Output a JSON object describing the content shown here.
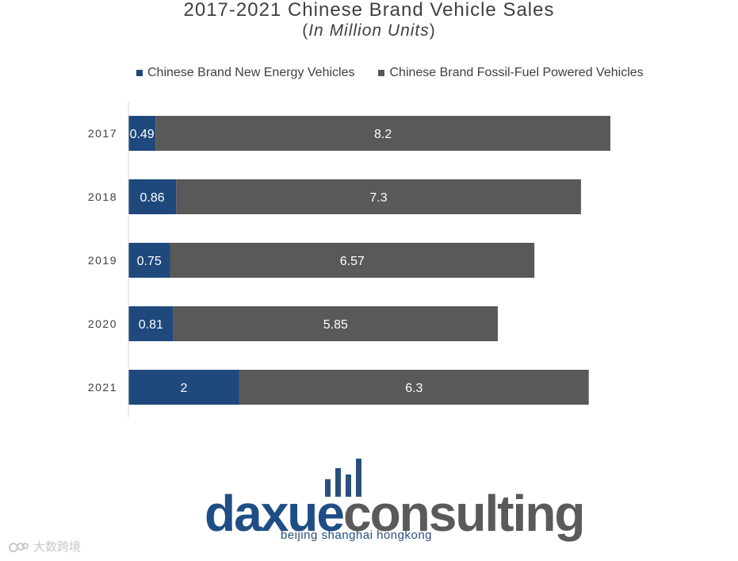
{
  "chart_data": {
    "type": "bar",
    "orientation": "horizontal",
    "stacked": true,
    "title": "2017-2021 Chinese Brand Vehicle Sales",
    "subtitle_open": "(",
    "subtitle_italic": "In Million Units",
    "subtitle_close": ")",
    "categories": [
      "2017",
      "2018",
      "2019",
      "2020",
      "2021"
    ],
    "series": [
      {
        "name": "Chinese Brand New Energy Vehicles",
        "color": "#1f497d",
        "values": [
          0.49,
          0.86,
          0.75,
          0.81,
          2
        ]
      },
      {
        "name": "Chinese Brand Fossil-Fuel Powered Vehicles",
        "color": "#595959",
        "values": [
          8.2,
          7.3,
          6.57,
          5.85,
          6.3
        ]
      }
    ],
    "xlim": [
      0,
      10
    ],
    "legend": "top",
    "grid": false
  },
  "logo": {
    "part1": "daxue",
    "part2": "consulting",
    "cities_a": "beijing ",
    "cities_b": "shanghai",
    "cities_c": " hongkong"
  },
  "watermark": "大数跨境"
}
